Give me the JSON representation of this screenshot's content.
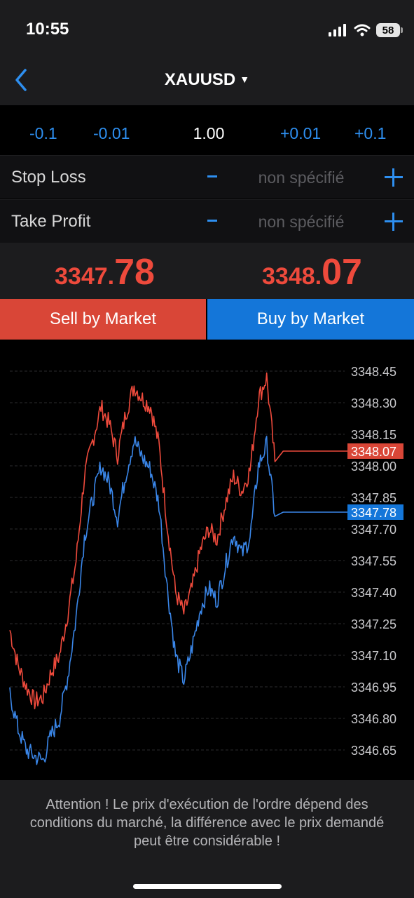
{
  "status_bar": {
    "time": "10:55",
    "battery": "58"
  },
  "nav": {
    "symbol": "XAUUSD"
  },
  "volume": {
    "minus_large": "-0.1",
    "minus_small": "-0.01",
    "value": "1.00",
    "plus_small": "+0.01",
    "plus_large": "+0.1"
  },
  "stop_loss": {
    "label": "Stop Loss",
    "value": "non spécifié"
  },
  "take_profit": {
    "label": "Take Profit",
    "value": "non spécifié"
  },
  "prices": {
    "sell_main": "3347.",
    "sell_big": "78",
    "buy_main": "3348.",
    "buy_big": "07"
  },
  "buttons": {
    "sell": "Sell by Market",
    "buy": "Buy by Market"
  },
  "colors": {
    "accent": "#2e8ff0",
    "sell": "#d94637",
    "buy": "#1476d9",
    "ask_line": "#ee4a3c",
    "bid_line": "#3a86e8"
  },
  "chart_data": {
    "type": "line",
    "y_ticks": [
      "3348.45",
      "3348.30",
      "3348.15",
      "3348.00",
      "3347.85",
      "3347.70",
      "3347.55",
      "3347.40",
      "3347.25",
      "3347.10",
      "3346.95",
      "3346.80",
      "3346.65"
    ],
    "ylim": [
      3346.6,
      3348.5
    ],
    "grid": true,
    "current_ask": "3348.07",
    "current_bid": "3347.78",
    "series": [
      {
        "color": "#ee4a3c",
        "values": [
          3347.22,
          3347.05,
          3346.95,
          3346.88,
          3346.9,
          3347.02,
          3347.1,
          3347.3,
          3347.55,
          3347.95,
          3348.12,
          3348.28,
          3348.2,
          3348.05,
          3348.25,
          3348.38,
          3348.32,
          3348.28,
          3348.1,
          3347.72,
          3347.4,
          3347.3,
          3347.42,
          3347.6,
          3347.7,
          3347.65,
          3347.82,
          3347.95,
          3347.88,
          3347.98,
          3348.32,
          3348.42,
          3348.02,
          3348.07,
          3348.07,
          3348.07
        ]
      },
      {
        "color": "#3a86e8",
        "values": [
          3346.92,
          3346.75,
          3346.65,
          3346.62,
          3346.6,
          3346.72,
          3346.8,
          3347.0,
          3347.28,
          3347.66,
          3347.84,
          3348.0,
          3347.92,
          3347.75,
          3347.96,
          3348.12,
          3348.04,
          3347.98,
          3347.82,
          3347.42,
          3347.1,
          3346.98,
          3347.14,
          3347.32,
          3347.42,
          3347.36,
          3347.52,
          3347.68,
          3347.58,
          3347.66,
          3348.0,
          3348.1,
          3347.76,
          3347.78,
          3347.78,
          3347.78
        ]
      }
    ]
  },
  "footer": {
    "warning": "Attention ! Le prix d'exécution de l'ordre dépend des conditions du marché, la différence avec le prix demandé peut être considérable !"
  }
}
